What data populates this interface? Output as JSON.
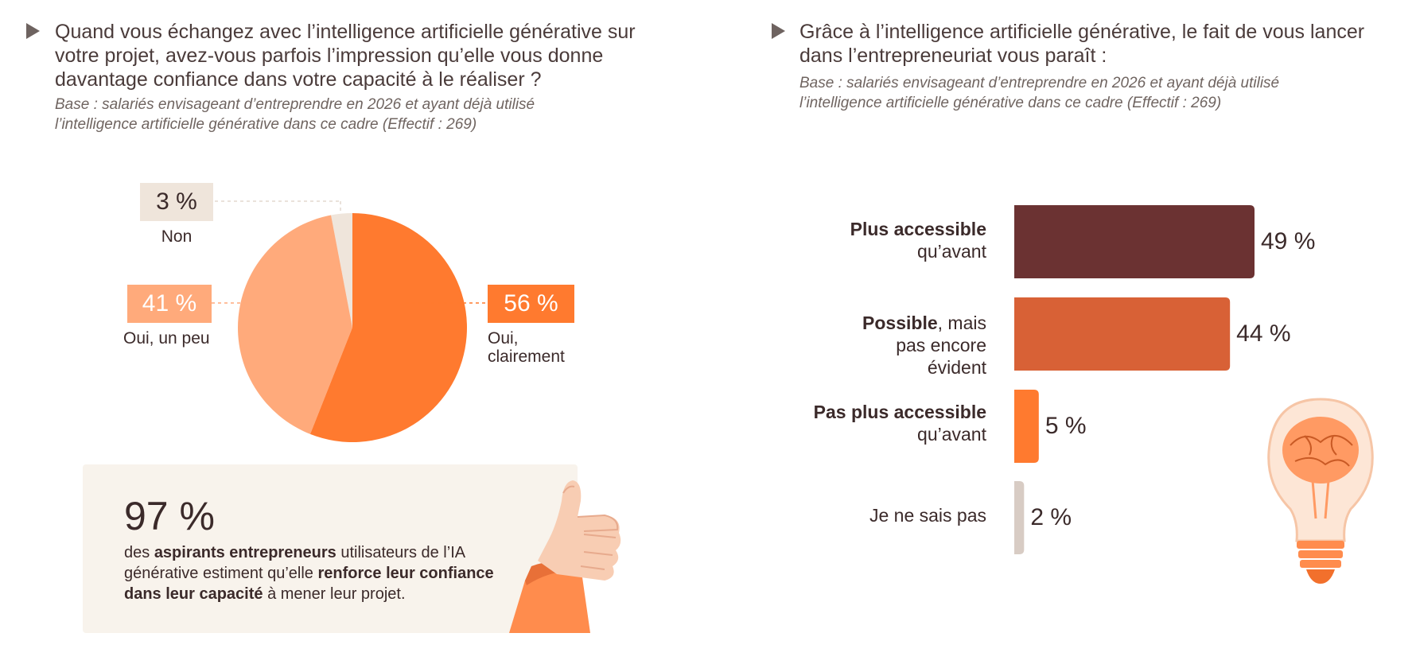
{
  "left_question": {
    "title": "Quand vous échangez avec l’intelligence artificielle générative sur votre projet, avez-vous parfois l’impression qu’elle vous donne davantage confiance dans votre capacité à le réaliser ?",
    "base": "Base : salariés envisageant d’entreprendre en 2026 et ayant déjà utilisé l’intelligence artificielle générative dans ce cadre (Effectif : 269)"
  },
  "right_question": {
    "title": "Grâce à l’intelligence artificielle générative, le fait de vous lancer dans l’entrepreneuriat vous paraît :",
    "base": "Base : salariés envisageant d’entreprendre en 2026 et ayant déjà utilisé l’intelligence artificielle générative dans ce cadre (Effectif : 269)"
  },
  "callout": {
    "number": "97 %",
    "text_1": "des ",
    "bold_1": "aspirants entrepreneurs",
    "text_2": " utilisateurs de l’IA générative estiment qu’elle ",
    "bold_2": "renforce leur confiance dans leur capacité",
    "text_3": " à mener leur projet."
  },
  "chart_data": [
    {
      "type": "pie",
      "slices": [
        {
          "label": "Oui, clairement",
          "value": 56,
          "display": "56 %",
          "color": "#ff7a2f"
        },
        {
          "label": "Oui, un peu",
          "value": 41,
          "display": "41 %",
          "color": "#ffaa7b"
        },
        {
          "label": "Non",
          "value": 3,
          "display": "3 %",
          "color": "#efe5db"
        }
      ]
    },
    {
      "type": "bar",
      "orientation": "horizontal",
      "categories": [
        {
          "bold": "Plus accessible",
          "rest": "qu’avant"
        },
        {
          "bold": "Possible",
          "rest": ", mais pas encore évident"
        },
        {
          "bold": "Pas plus accessible",
          "rest": "qu’avant"
        },
        {
          "bold": "",
          "rest": "Je ne sais pas"
        }
      ],
      "values": [
        49,
        44,
        5,
        2
      ],
      "value_labels": [
        "49 %",
        "44 %",
        "5 %",
        "2 %"
      ],
      "colors": [
        "#6b3232",
        "#d86136",
        "#ff7a2f",
        "#d8ccc4"
      ]
    }
  ]
}
